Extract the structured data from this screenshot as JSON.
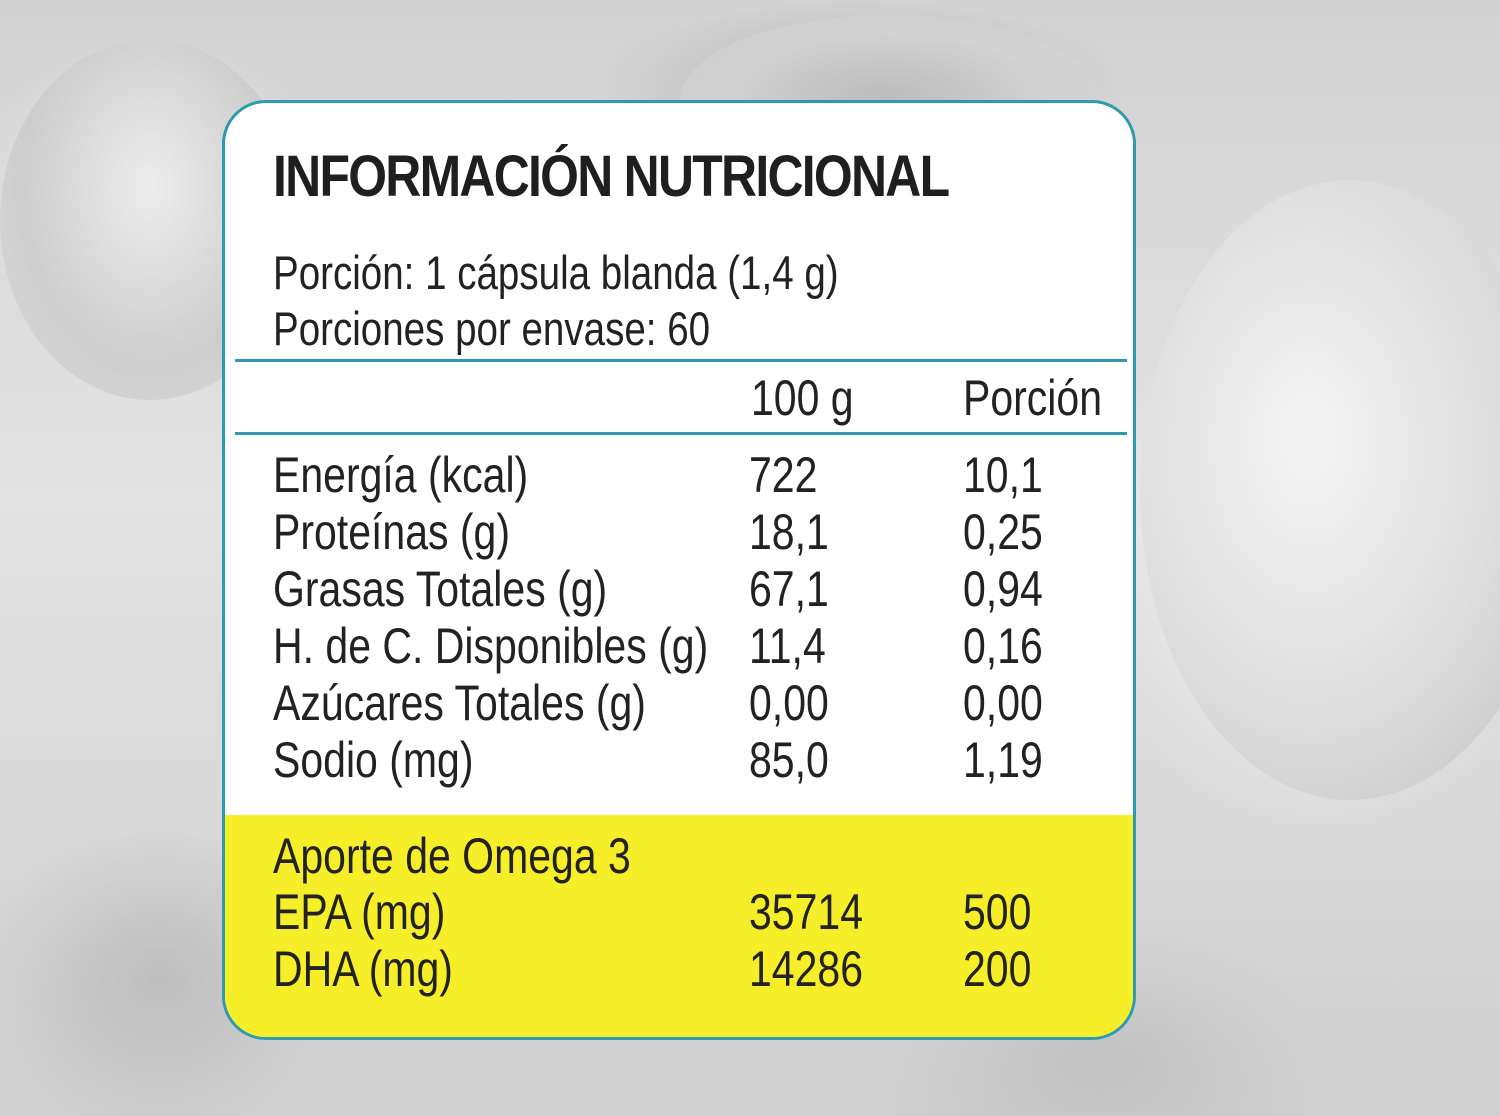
{
  "label": {
    "title": "INFORMACIÓN NUTRICIONAL",
    "serving_size": "Porción: 1 cápsula blanda (1,4 g)",
    "servings_per_container": "Porciones por envase: 60",
    "columns": [
      "100 g",
      "Porción"
    ],
    "nutrients": [
      {
        "name": "Energía (kcal)",
        "per_100g": "722",
        "per_serving": "10,1"
      },
      {
        "name": "Proteínas (g)",
        "per_100g": "18,1",
        "per_serving": "0,25"
      },
      {
        "name": "Grasas Totales (g)",
        "per_100g": "67,1",
        "per_serving": "0,94"
      },
      {
        "name": "H. de C. Disponibles (g)",
        "per_100g": "11,4",
        "per_serving": "0,16"
      },
      {
        "name": "Azúcares Totales (g)",
        "per_100g": "0,00",
        "per_serving": "0,00"
      },
      {
        "name": "Sodio (mg)",
        "per_100g": "85,0",
        "per_serving": "1,19"
      }
    ],
    "omega": {
      "heading": "Aporte de Omega 3",
      "rows": [
        {
          "name": "EPA (mg)",
          "per_100g": "35714",
          "per_serving": "500"
        },
        {
          "name": "DHA (mg)",
          "per_100g": "14286",
          "per_serving": "200"
        }
      ]
    }
  },
  "colors": {
    "border": "#2e9ab0",
    "highlight": "#f7ee2a",
    "text": "#222222",
    "background": "#d9d9d9"
  }
}
